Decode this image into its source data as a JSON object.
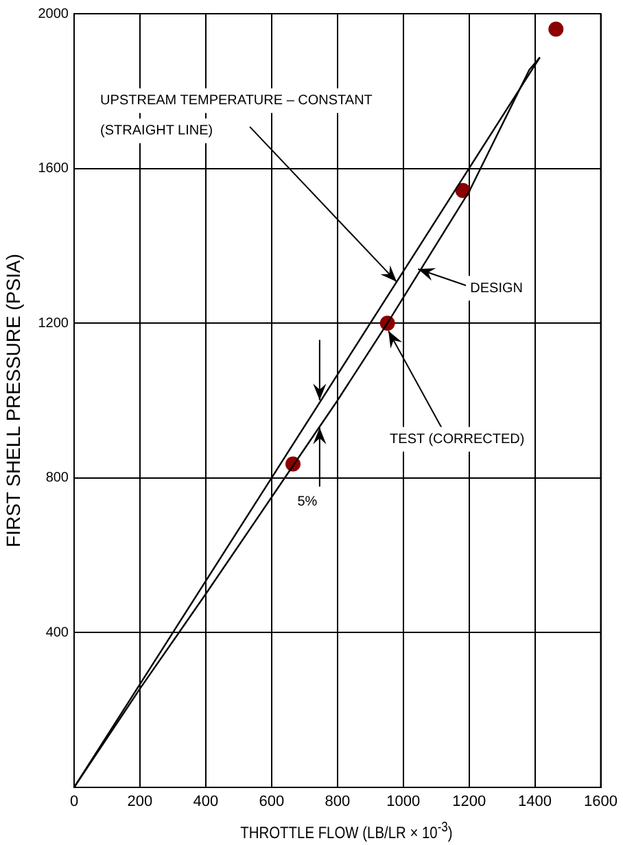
{
  "chart_data": {
    "type": "line",
    "xlabel": "THROTTLE FLOW (LB/LR × 10$^{-3}$)",
    "ylabel": "FIRST SHELL PRESSURE (PSIA)",
    "xlim": [
      0,
      1600
    ],
    "xticks": [
      0,
      200,
      400,
      600,
      800,
      1000,
      1200,
      1400,
      1600
    ],
    "ylim": [
      0,
      2000
    ],
    "yticks": [
      {
        "value": 0,
        "label": null
      },
      400,
      800,
      1200,
      1600,
      2000
    ],
    "grid": true,
    "legend": false,
    "series": [
      {
        "color": "#000000",
        "marker": "none",
        "x": [
          0,
          1415
        ],
        "values": [
          0,
          1887
        ]
      },
      {
        "color": "#000000",
        "marker": "none",
        "x": [
          0,
          200,
          400,
          640,
          800,
          952,
          1200,
          1383,
          1415
        ],
        "values": [
          0,
          255,
          500,
          800,
          1000,
          1200,
          1540,
          1855,
          1887
        ]
      },
      {
        "type": "scatter",
        "color": "#8b0000",
        "marker": "circle",
        "x": [
          665,
          952,
          1181,
          1464
        ],
        "values": [
          836,
          1200,
          1543,
          1960
        ]
      }
    ],
    "annotations": [
      {
        "text": "UPSTREAM TEMPERATURE – CONSTANT (STRAIGHT LINE)",
        "x": 980,
        "y": 1307
      },
      {
        "text": "DESIGN",
        "x": 1045,
        "y": 1340
      },
      {
        "text": "TEST (CORRECTED)",
        "x": 955,
        "y": 1180
      },
      {
        "text": "5%",
        "x": 746,
        "y": 930
      }
    ]
  }
}
